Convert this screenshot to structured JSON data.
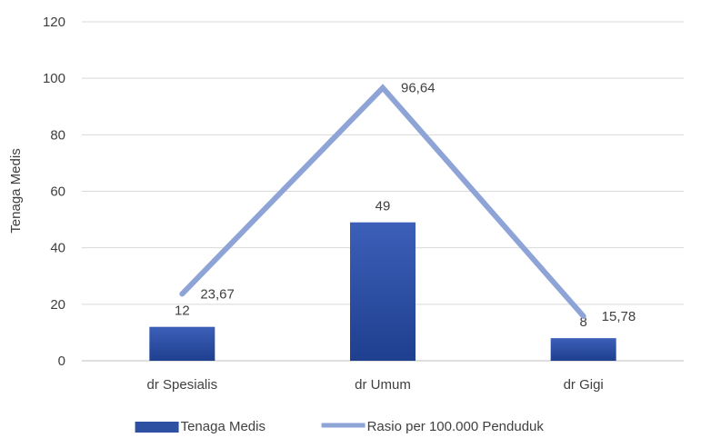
{
  "chart_data": {
    "type": "bar",
    "categories": [
      "dr Spesialis",
      "dr Umum",
      "dr Gigi"
    ],
    "ylabel": "Tenaga Medis",
    "ylim": [
      0,
      120
    ],
    "yticks": [
      0,
      20,
      40,
      60,
      80,
      100,
      120
    ],
    "grid": true,
    "legend_position": "bottom",
    "series": [
      {
        "name": "Tenaga Medis",
        "kind": "bar",
        "values": [
          12,
          49,
          8
        ],
        "labels": [
          "12",
          "49",
          "8"
        ],
        "color": "#2E50A3"
      },
      {
        "name": "Rasio per 100.000 Penduduk",
        "kind": "line",
        "values": [
          23.67,
          96.64,
          15.78
        ],
        "labels": [
          "23,67",
          "96,64",
          "15,78"
        ],
        "color": "#8EA3D6"
      }
    ]
  }
}
